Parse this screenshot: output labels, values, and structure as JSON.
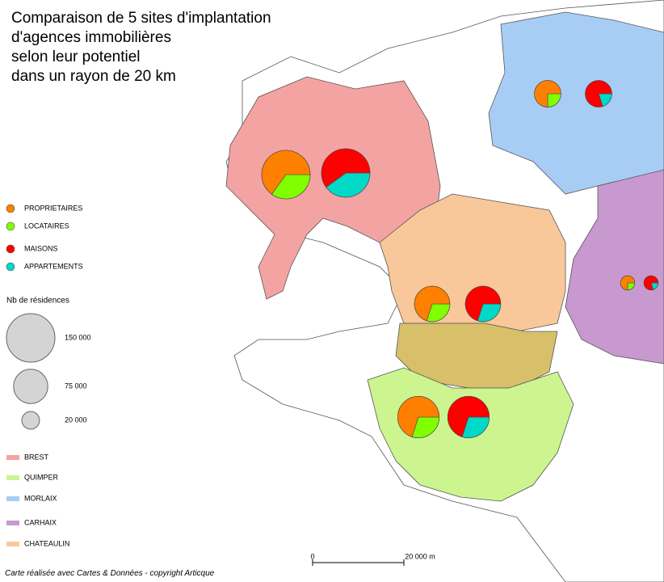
{
  "title": [
    "Comparaison de 5 sites d'implantation",
    "d'agences immobilières",
    "selon leur potentiel",
    "dans un rayon de 20 km"
  ],
  "pie_legend": [
    {
      "label": "PROPRIETAIRES",
      "color": "#ff8000"
    },
    {
      "label": "LOCATAIRES",
      "color": "#80ff00"
    },
    {
      "label": "MAISONS",
      "color": "#ff0000"
    },
    {
      "label": "APPARTEMENTS",
      "color": "#00d8c8"
    }
  ],
  "size_legend": {
    "title": "Nb de résidences",
    "items": [
      {
        "value": 150000,
        "label": "150 000"
      },
      {
        "value": 75000,
        "label": "75 000"
      },
      {
        "value": 20000,
        "label": "20 000"
      }
    ]
  },
  "zone_legend": [
    {
      "label": "BREST",
      "color": "#f4a3a3"
    },
    {
      "label": "QUIMPER",
      "color": "#ccf590"
    },
    {
      "label": "MORLAIX",
      "color": "#a8cdf5"
    },
    {
      "label": "CARHAIX",
      "color": "#c799cf"
    },
    {
      "label": "CHATEAULIN",
      "color": "#f8c89a"
    }
  ],
  "sites": [
    {
      "residences": 150000,
      "occupation": [
        65,
        35
      ],
      "logement": [
        60,
        40
      ]
    },
    {
      "residences": 110000,
      "occupation": [
        70,
        30
      ],
      "logement": [
        70,
        30
      ]
    },
    {
      "residences": 45000,
      "occupation": [
        75,
        25
      ],
      "logement": [
        80,
        20
      ]
    },
    {
      "residences": 13000,
      "occupation": [
        75,
        25
      ],
      "logement": [
        80,
        20
      ]
    },
    {
      "residences": 80000,
      "occupation": [
        70,
        30
      ],
      "logement": [
        70,
        30
      ]
    }
  ],
  "scale": {
    "labels": [
      "0",
      "20 000 m"
    ]
  },
  "credit": "Carte réalisée avec Cartes & Données - copyright Articque"
}
